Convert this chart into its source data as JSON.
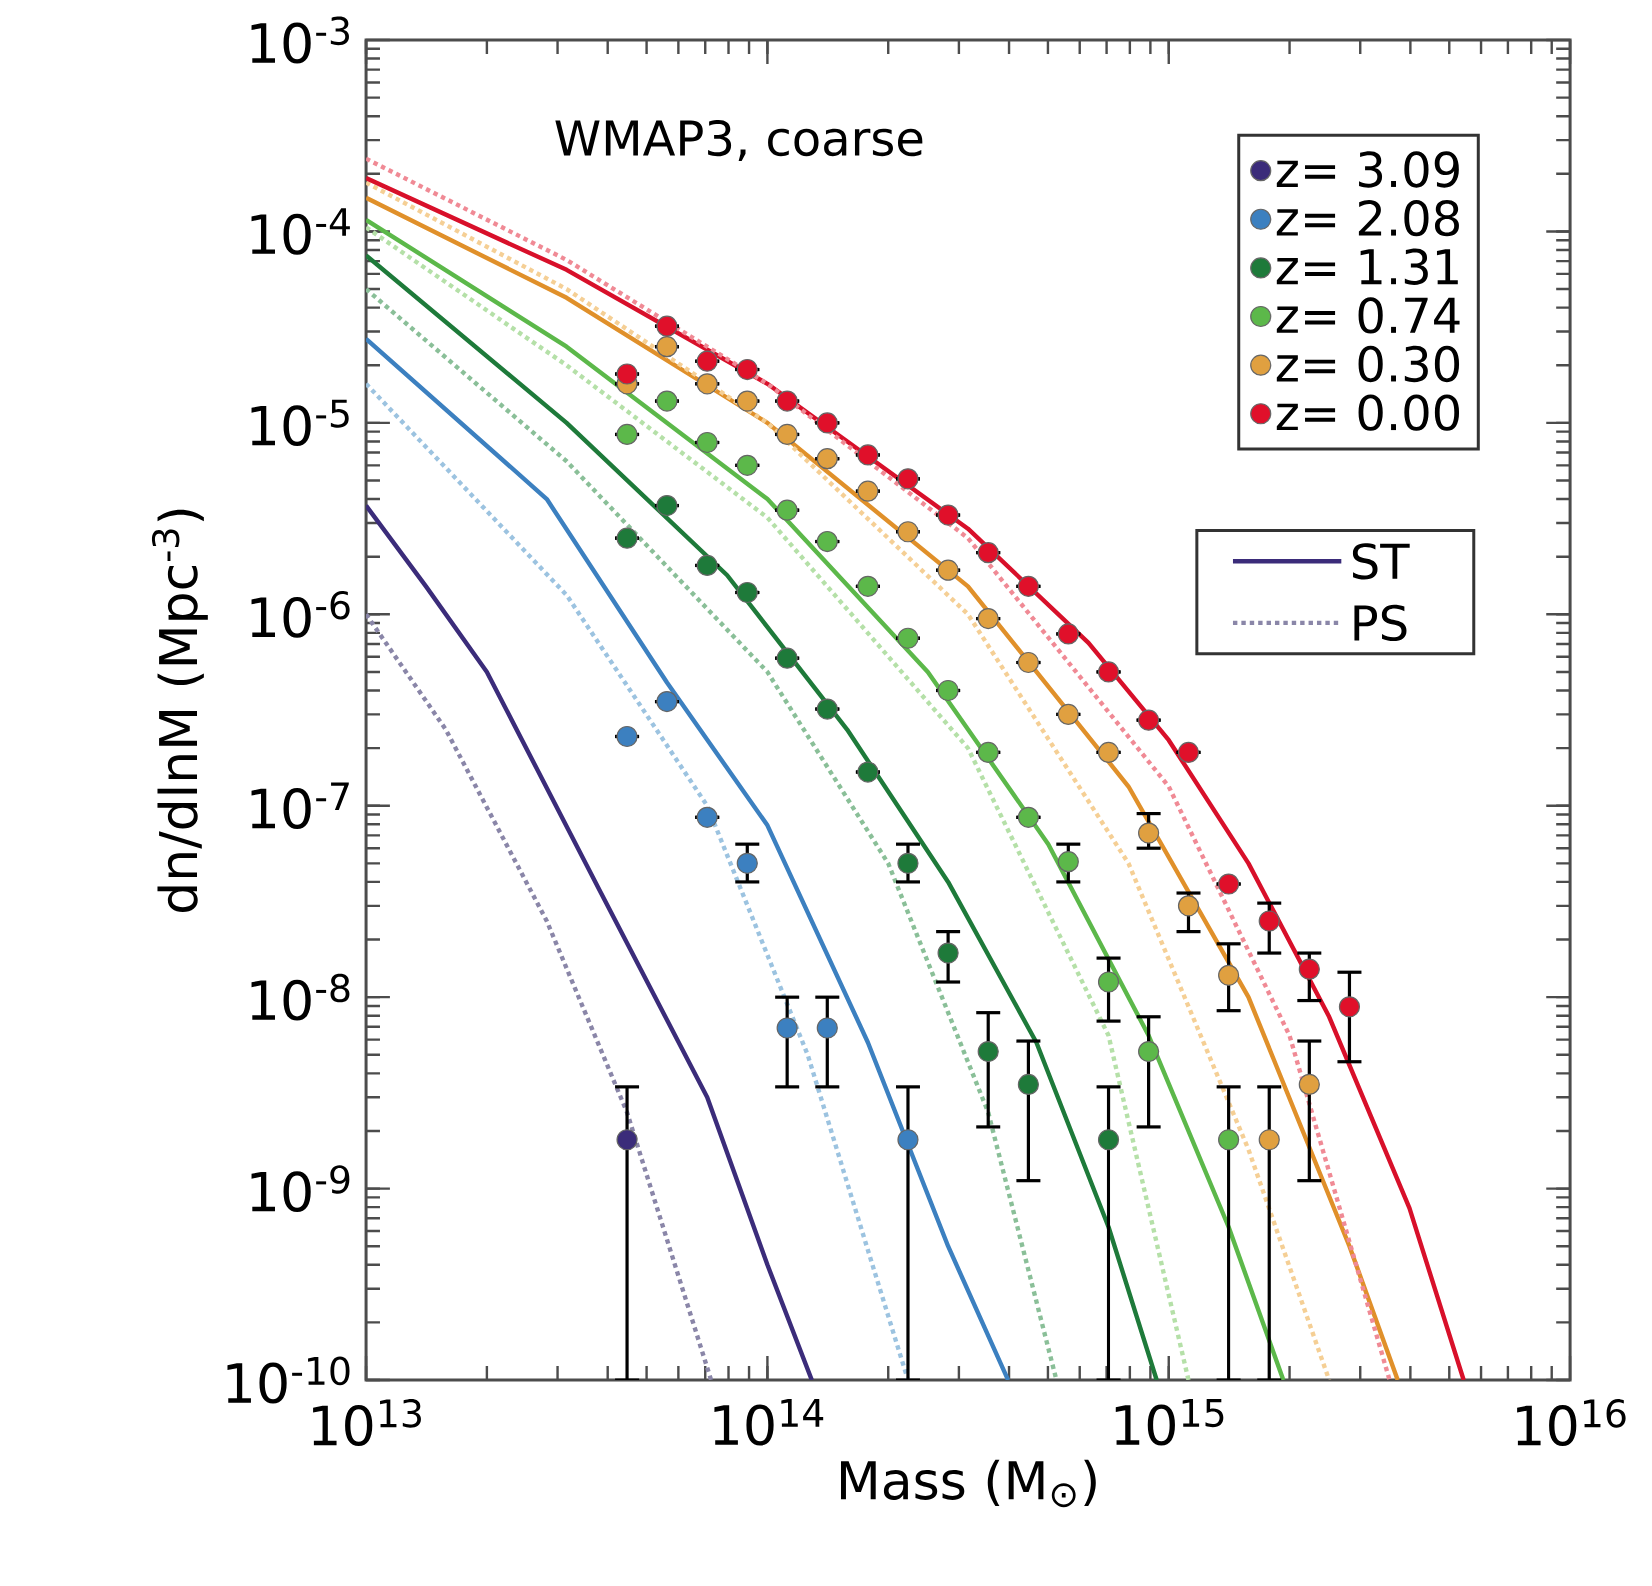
{
  "chart_data": {
    "type": "scatter",
    "log": "xy",
    "marker": "circle",
    "legend": "top right",
    "xlabel": "Mass (M$_{⊙}$)",
    "ylabel": "dn/dlnM (Mpc$^{-3}$)",
    "annotations": [
      "WMAP3, coarse"
    ],
    "xlim": [
      10000000000000.0,
      1e+16
    ],
    "ylim": [
      1e-10,
      0.001
    ],
    "xticks": [
      {
        "value": 10000000000000.0,
        "label": "10$^{13}$"
      },
      {
        "value": 100000000000000.0,
        "label": "10$^{14}$"
      },
      {
        "value": 1000000000000000.0,
        "label": "10$^{15}$"
      },
      {
        "value": 1e+16,
        "label": "10$^{16}$"
      }
    ],
    "yticks": [
      {
        "value": 1e-10,
        "label": "10$^{-10}$"
      },
      {
        "value": 1e-09,
        "label": "10$^{-9}$"
      },
      {
        "value": 1e-08,
        "label": "10$^{-8}$"
      },
      {
        "value": 1e-07,
        "label": "10$^{-7}$"
      },
      {
        "value": 1e-06,
        "label": "10$^{-6}$"
      },
      {
        "value": 1e-05,
        "label": "10$^{-5}$"
      },
      {
        "value": 0.0001,
        "label": "10$^{-4}$"
      },
      {
        "value": 0.001,
        "label": "10$^{-3}$"
      }
    ],
    "series": [
      {
        "type": "line",
        "line_style": "solid",
        "name": "ST",
        "color": "#3b2c7a",
        "marker": "none",
        "x": [
          10000000000000.0,
          14100000000000.0,
          20000000000000.0,
          38500000000000.0,
          70800000000000.0,
          100000000000000.0,
          129000000000000.0
        ],
        "values": [
          3.7e-06,
          1.4e-06,
          5e-07,
          3.5e-08,
          3e-09,
          4e-10,
          1e-10
        ]
      },
      {
        "type": "line",
        "line_style": "dotted",
        "name": "PS",
        "color": "#8a86a8",
        "marker": "none",
        "x": [
          10000000000000.0,
          15800000000000.0,
          28200000000000.0,
          44700000000000.0,
          72400000000000.0
        ],
        "values": [
          1e-06,
          2.5e-07,
          2.5e-08,
          2.5e-09,
          1e-10
        ]
      },
      {
        "type": "line",
        "line_style": "solid",
        "color": "#3c80c0",
        "marker": "none",
        "x": [
          10000000000000.0,
          28200000000000.0,
          56200000000000.0,
          100000000000000.0,
          178000000000000.0,
          282000000000000.0,
          398000000000000.0
        ],
        "values": [
          2.75e-05,
          4e-06,
          4.4e-07,
          7.9e-08,
          5.8e-09,
          5e-10,
          1e-10
        ]
      },
      {
        "type": "line",
        "line_style": "dotted",
        "color": "#9cc3e0",
        "marker": "none",
        "x": [
          10000000000000.0,
          31600000000000.0,
          70800000000000.0,
          126000000000000.0,
          224000000000000.0
        ],
        "values": [
          1.6e-05,
          1.26e-06,
          1e-07,
          5e-09,
          1e-10
        ]
      },
      {
        "type": "line",
        "line_style": "solid",
        "color": "#1e7a3a",
        "marker": "none",
        "x": [
          10000000000000.0,
          31600000000000.0,
          79400000000000.0,
          158000000000000.0,
          282000000000000.0,
          468000000000000.0,
          708000000000000.0,
          933000000000000.0
        ],
        "values": [
          7.5e-05,
          1e-05,
          1.6e-06,
          2.5e-07,
          4e-08,
          5.8e-09,
          6.3e-10,
          1e-10
        ]
      },
      {
        "type": "line",
        "line_style": "dotted",
        "color": "#8abf98",
        "marker": "none",
        "x": [
          10000000000000.0,
          31600000000000.0,
          100000000000000.0,
          200000000000000.0,
          355000000000000.0,
          525000000000000.0
        ],
        "values": [
          5e-05,
          6.3e-06,
          5e-07,
          5e-08,
          2.5e-09,
          1e-10
        ]
      },
      {
        "type": "line",
        "line_style": "solid",
        "color": "#5cb84a",
        "marker": "none",
        "x": [
          10000000000000.0,
          31600000000000.0,
          100000000000000.0,
          251000000000000.0,
          501000000000000.0,
          891000000000000.0,
          1410000000000000.0,
          1930000000000000.0
        ],
        "values": [
          0.000115,
          2.5e-05,
          4e-06,
          5e-07,
          6.3e-08,
          6.3e-09,
          6.3e-10,
          1e-10
        ]
      },
      {
        "type": "line",
        "line_style": "dotted",
        "color": "#b5e0a8",
        "marker": "none",
        "x": [
          10000000000000.0,
          31600000000000.0,
          100000000000000.0,
          316000000000000.0,
          708000000000000.0,
          1120000000000000.0
        ],
        "values": [
          0.000105,
          2e-05,
          3.2e-06,
          2e-07,
          6.3e-09,
          1e-10
        ]
      },
      {
        "type": "line",
        "line_style": "solid",
        "color": "#e0902a",
        "marker": "none",
        "x": [
          10000000000000.0,
          31600000000000.0,
          100000000000000.0,
          316000000000000.0,
          794000000000000.0,
          1580000000000000.0,
          2820000000000000.0,
          3720000000000000.0
        ],
        "values": [
          0.00015,
          4.5e-05,
          1e-05,
          1.4e-06,
          1.26e-07,
          1e-08,
          5e-10,
          1e-10
        ]
      },
      {
        "type": "line",
        "line_style": "dotted",
        "color": "#f5cf95",
        "marker": "none",
        "x": [
          10000000000000.0,
          31600000000000.0,
          100000000000000.0,
          316000000000000.0,
          794000000000000.0,
          1580000000000000.0,
          2510000000000000.0
        ],
        "values": [
          0.00018,
          5e-05,
          1e-05,
          1e-06,
          5e-08,
          1.6e-09,
          1e-10
        ]
      },
      {
        "type": "line",
        "line_style": "solid",
        "color": "#d8102a",
        "marker": "none",
        "x": [
          10000000000000.0,
          31600000000000.0,
          100000000000000.0,
          316000000000000.0,
          631000000000000.0,
          1000000000000000.0,
          1580000000000000.0,
          2510000000000000.0,
          3980000000000000.0,
          5430000000000000.0
        ],
        "values": [
          0.00019,
          6.3e-05,
          1.6e-05,
          2.8e-06,
          7.1e-07,
          2.2e-07,
          5e-08,
          7.9e-09,
          7.9e-10,
          1e-10
        ]
      },
      {
        "type": "line",
        "line_style": "dotted",
        "color": "#f08a95",
        "marker": "none",
        "x": [
          10000000000000.0,
          31600000000000.0,
          100000000000000.0,
          316000000000000.0,
          1000000000000000.0,
          2000000000000000.0,
          3550000000000000.0
        ],
        "values": [
          0.00024,
          7.1e-05,
          1.6e-05,
          2.5e-06,
          1.26e-07,
          6.3e-09,
          1e-10
        ]
      },
      {
        "name": "z= 3.09",
        "color": "#3b2c7a",
        "x": [
          44700000000000.0
        ],
        "values": [
          1.8e-09
        ],
        "errors": [
          [
            1e-10,
            3.4e-09
          ]
        ]
      },
      {
        "name": "z= 2.08",
        "color": "#3c80c0",
        "x": [
          44700000000000.0,
          56200000000000.0,
          70800000000000.0,
          89100000000000.0,
          112000000000000.0,
          141000000000000.0,
          178000000000000.0,
          224000000000000.0
        ],
        "values": [
          2.3e-07,
          3.5e-07,
          8.7e-08,
          5e-08,
          6.9e-09,
          6.9e-09,
          null,
          1.8e-09
        ],
        "errors": [
          null,
          null,
          null,
          [
            4e-08,
            6.3e-08
          ],
          [
            3.4e-09,
            1e-08
          ],
          [
            3.4e-09,
            1e-08
          ],
          null,
          [
            1e-10,
            3.4e-09
          ]
        ]
      },
      {
        "name": "z= 1.31",
        "color": "#1e7a3a",
        "x": [
          44700000000000.0,
          56200000000000.0,
          70800000000000.0,
          89100000000000.0,
          112000000000000.0,
          141000000000000.0,
          178000000000000.0,
          224000000000000.0,
          282000000000000.0,
          355000000000000.0,
          447000000000000.0,
          562000000000000.0,
          708000000000000.0
        ],
        "values": [
          2.5e-06,
          3.7e-06,
          1.8e-06,
          1.3e-06,
          5.9e-07,
          3.2e-07,
          1.5e-07,
          5e-08,
          1.7e-08,
          5.2e-09,
          3.5e-09,
          null,
          1.8e-09
        ],
        "errors": [
          null,
          null,
          null,
          null,
          null,
          null,
          null,
          [
            4e-08,
            6.3e-08
          ],
          [
            1.2e-08,
            2.2e-08
          ],
          [
            2.1e-09,
            8.3e-09
          ],
          [
            1.1e-09,
            5.9e-09
          ],
          null,
          [
            1e-10,
            3.4e-09
          ]
        ]
      },
      {
        "name": "z= 0.74",
        "color": "#5cb84a",
        "x": [
          44700000000000.0,
          56200000000000.0,
          70800000000000.0,
          89100000000000.0,
          112000000000000.0,
          141000000000000.0,
          178000000000000.0,
          224000000000000.0,
          282000000000000.0,
          355000000000000.0,
          447000000000000.0,
          562000000000000.0,
          708000000000000.0,
          891000000000000.0,
          1120000000000000.0,
          1410000000000000.0
        ],
        "values": [
          8.7e-06,
          1.3e-05,
          7.9e-06,
          6e-06,
          3.5e-06,
          2.4e-06,
          1.4e-06,
          7.5e-07,
          4e-07,
          1.9e-07,
          8.7e-08,
          5.1e-08,
          1.2e-08,
          5.2e-09,
          null,
          1.8e-09
        ],
        "errors": [
          null,
          null,
          null,
          null,
          null,
          null,
          null,
          null,
          null,
          null,
          null,
          [
            4e-08,
            6.3e-08
          ],
          [
            7.5e-09,
            1.6e-08
          ],
          [
            2.1e-09,
            7.9e-09
          ],
          null,
          [
            1e-10,
            3.4e-09
          ]
        ]
      },
      {
        "name": "z= 0.30",
        "color": "#e0a040",
        "x": [
          44700000000000.0,
          56200000000000.0,
          70800000000000.0,
          89100000000000.0,
          112000000000000.0,
          141000000000000.0,
          178000000000000.0,
          224000000000000.0,
          282000000000000.0,
          355000000000000.0,
          447000000000000.0,
          562000000000000.0,
          708000000000000.0,
          891000000000000.0,
          1120000000000000.0,
          1410000000000000.0,
          1780000000000000.0,
          2240000000000000.0
        ],
        "values": [
          1.6e-05,
          2.5e-05,
          1.6e-05,
          1.3e-05,
          8.7e-06,
          6.5e-06,
          4.4e-06,
          2.7e-06,
          1.7e-06,
          9.5e-07,
          5.6e-07,
          3e-07,
          1.9e-07,
          7.2e-08,
          3e-08,
          1.3e-08,
          1.8e-09,
          3.5e-09
        ],
        "errors": [
          null,
          null,
          null,
          null,
          null,
          null,
          null,
          null,
          null,
          null,
          null,
          null,
          null,
          [
            6e-08,
            9.1e-08
          ],
          [
            2.2e-08,
            3.5e-08
          ],
          [
            8.5e-09,
            1.9e-08
          ],
          [
            1e-10,
            3.4e-09
          ],
          [
            1.1e-09,
            5.9e-09
          ]
        ]
      },
      {
        "name": "z= 0.00",
        "color": "#e0102a",
        "x": [
          44700000000000.0,
          56200000000000.0,
          70800000000000.0,
          89100000000000.0,
          112000000000000.0,
          141000000000000.0,
          178000000000000.0,
          224000000000000.0,
          282000000000000.0,
          355000000000000.0,
          447000000000000.0,
          562000000000000.0,
          708000000000000.0,
          891000000000000.0,
          1120000000000000.0,
          1410000000000000.0,
          1780000000000000.0,
          2240000000000000.0,
          2820000000000000.0
        ],
        "values": [
          1.8e-05,
          3.2e-05,
          2.1e-05,
          1.9e-05,
          1.3e-05,
          1e-05,
          6.8e-06,
          5.1e-06,
          3.3e-06,
          2.1e-06,
          1.4e-06,
          7.9e-07,
          5e-07,
          2.8e-07,
          1.9e-07,
          3.9e-08,
          2.5e-08,
          1.4e-08,
          8.9e-09
        ],
        "errors": [
          null,
          null,
          null,
          null,
          null,
          null,
          null,
          null,
          null,
          null,
          null,
          null,
          null,
          null,
          null,
          null,
          [
            1.7e-08,
            3.1e-08
          ],
          [
            9.6e-09,
            1.7e-08
          ],
          [
            4.6e-09,
            1.35e-08
          ]
        ]
      }
    ]
  }
}
